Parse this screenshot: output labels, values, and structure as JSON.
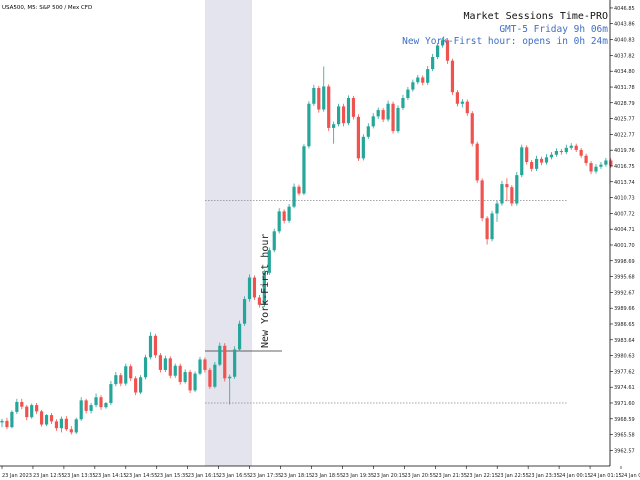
{
  "symbol_label": "USA500, M5:  S&P 500 / Mex CFD",
  "panel": {
    "title": "Market Sessions Time-PRO",
    "gmt_line": "GMT-5 Friday 9h 06m",
    "session_line": "New York-First hour: opens in 0h 24m",
    "session_box_label": "New York-First hour"
  },
  "colors": {
    "bull": "#26a69a",
    "bear": "#ef5350",
    "session_fill": "#e3e4ee",
    "info_blue": "#3e6fc4",
    "dotted": "#888888"
  },
  "chart_data": {
    "type": "candlestick",
    "title": "",
    "xlabel": "",
    "ylabel": "",
    "ylim": [
      3959.6,
      4047.6
    ],
    "y_ticks": [
      "4046.85",
      "4043.86",
      "4040.83",
      "4037.82",
      "4034.80",
      "4031.78",
      "4028.79",
      "4025.77",
      "4022.77",
      "4019.76",
      "4016.75",
      "4013.74",
      "4010.73",
      "4007.72",
      "4004.71",
      "4001.70",
      "3998.69",
      "3995.68",
      "3992.67",
      "3989.66",
      "3986.65",
      "3983.64",
      "3980.63",
      "3977.62",
      "3974.61",
      "3971.60",
      "3968.59",
      "3965.58",
      "3962.57"
    ],
    "x_ticks": [
      "23 Jan 2023",
      "23 Jan 12:55",
      "23 Jan 13:35",
      "23 Jan 14:15",
      "23 Jan 14:55",
      "23 Jan 15:35",
      "23 Jan 16:15",
      "23 Jan 16:55",
      "23 Jan 17:35",
      "23 Jan 18:15",
      "23 Jan 18:55",
      "23 Jan 19:35",
      "23 Jan 20:15",
      "23 Jan 20:55",
      "23 Jan 21:35",
      "23 Jan 22:15",
      "23 Jan 22:55",
      "23 Jan 23:35",
      "24 Jan 00:15",
      "24 Jan 01:15",
      "24 Jan 01:55"
    ],
    "session_levels": {
      "high": 4010.2,
      "low": 3971.6,
      "first_close": 3981.5
    },
    "candles": [
      [
        3967.9,
        3968.6,
        3967.0,
        3968.2
      ],
      [
        3968.2,
        3968.8,
        3966.6,
        3967.0
      ],
      [
        3967.0,
        3970.2,
        3966.8,
        3969.9
      ],
      [
        3969.9,
        3972.4,
        3969.5,
        3971.8
      ],
      [
        3971.8,
        3972.4,
        3970.4,
        3970.9
      ],
      [
        3970.9,
        3971.2,
        3968.3,
        3968.9
      ],
      [
        3968.9,
        3971.5,
        3968.6,
        3971.2
      ],
      [
        3971.2,
        3971.6,
        3969.5,
        3970.0
      ],
      [
        3970.0,
        3970.3,
        3967.1,
        3967.5
      ],
      [
        3967.5,
        3969.5,
        3967.2,
        3969.3
      ],
      [
        3969.3,
        3969.7,
        3967.6,
        3968.1
      ],
      [
        3968.1,
        3968.5,
        3966.3,
        3966.8
      ],
      [
        3966.8,
        3969.0,
        3966.0,
        3968.6
      ],
      [
        3968.6,
        3969.1,
        3966.3,
        3966.6
      ],
      [
        3966.6,
        3967.2,
        3965.6,
        3966.0
      ],
      [
        3966.0,
        3968.8,
        3965.7,
        3968.5
      ],
      [
        3968.5,
        3972.7,
        3968.2,
        3972.1
      ],
      [
        3972.1,
        3972.4,
        3969.6,
        3970.1
      ],
      [
        3970.1,
        3971.6,
        3969.6,
        3971.2
      ],
      [
        3971.2,
        3973.4,
        3970.8,
        3972.7
      ],
      [
        3972.7,
        3973.1,
        3970.3,
        3970.8
      ],
      [
        3970.8,
        3971.8,
        3970.5,
        3971.6
      ],
      [
        3971.6,
        3975.8,
        3971.2,
        3975.2
      ],
      [
        3975.2,
        3977.5,
        3974.8,
        3976.9
      ],
      [
        3976.9,
        3977.3,
        3974.8,
        3975.3
      ],
      [
        3975.3,
        3979.1,
        3974.9,
        3978.6
      ],
      [
        3978.6,
        3979.0,
        3975.8,
        3976.3
      ],
      [
        3976.3,
        3976.7,
        3973.1,
        3973.6
      ],
      [
        3973.6,
        3976.9,
        3973.3,
        3976.5
      ],
      [
        3976.5,
        3980.8,
        3976.1,
        3980.3
      ],
      [
        3980.3,
        3985.1,
        3979.9,
        3984.4
      ],
      [
        3984.4,
        3984.8,
        3980.2,
        3980.7
      ],
      [
        3980.7,
        3981.1,
        3977.4,
        3977.9
      ],
      [
        3977.9,
        3980.6,
        3977.5,
        3980.1
      ],
      [
        3980.1,
        3980.5,
        3976.3,
        3976.8
      ],
      [
        3976.8,
        3979.1,
        3976.4,
        3978.7
      ],
      [
        3978.7,
        3979.1,
        3975.1,
        3975.6
      ],
      [
        3975.6,
        3978.0,
        3975.3,
        3977.5
      ],
      [
        3977.5,
        3977.9,
        3973.5,
        3974.0
      ],
      [
        3974.0,
        3977.6,
        3973.7,
        3977.2
      ],
      [
        3977.2,
        3980.4,
        3976.9,
        3979.9
      ],
      [
        3979.9,
        3980.3,
        3977.4,
        3977.9
      ],
      [
        3977.9,
        3978.3,
        3974.3,
        3974.7
      ],
      [
        3974.7,
        3979.4,
        3974.4,
        3978.9
      ],
      [
        3978.9,
        3983.1,
        3978.6,
        3982.5
      ],
      [
        3982.5,
        3983.0,
        3975.7,
        3976.3
      ],
      [
        3976.3,
        3977.0,
        3971.3,
        3976.6
      ],
      [
        3976.6,
        3982.4,
        3976.2,
        3981.8
      ],
      [
        3981.8,
        3987.3,
        3981.4,
        3986.7
      ],
      [
        3986.7,
        3991.9,
        3986.3,
        3991.4
      ],
      [
        3991.4,
        3996.1,
        3990.9,
        3995.5
      ],
      [
        3995.5,
        3995.9,
        3991.2,
        3991.7
      ],
      [
        3991.7,
        3992.2,
        3989.8,
        3990.3
      ],
      [
        3990.3,
        3997.0,
        3989.9,
        3996.4
      ],
      [
        3996.4,
        4001.2,
        3996.0,
        4000.7
      ],
      [
        4000.7,
        4004.8,
        4000.3,
        4004.3
      ],
      [
        4004.3,
        4008.7,
        4003.9,
        4008.1
      ],
      [
        4008.1,
        4008.5,
        4005.8,
        4006.3
      ],
      [
        4006.3,
        4009.5,
        4005.9,
        4009.0
      ],
      [
        4009.0,
        4013.4,
        4008.7,
        4012.8
      ],
      [
        4012.8,
        4013.2,
        4011.1,
        4011.5
      ],
      [
        4011.5,
        4020.9,
        4011.2,
        4020.5
      ],
      [
        4020.5,
        4029.1,
        4020.1,
        4028.6
      ],
      [
        4028.6,
        4032.2,
        4028.2,
        4031.6
      ],
      [
        4031.6,
        4032.0,
        4026.9,
        4027.5
      ],
      [
        4027.5,
        4035.7,
        4027.1,
        4031.9
      ],
      [
        4031.9,
        4032.3,
        4023.4,
        4024.0
      ],
      [
        4024.0,
        4025.2,
        4021.0,
        4024.7
      ],
      [
        4024.7,
        4028.6,
        4024.3,
        4028.1
      ],
      [
        4028.1,
        4028.6,
        4024.3,
        4024.9
      ],
      [
        4024.9,
        4030.2,
        4024.5,
        4029.7
      ],
      [
        4029.7,
        4030.1,
        4025.6,
        4026.1
      ],
      [
        4026.1,
        4026.6,
        4017.7,
        4018.2
      ],
      [
        4018.2,
        4022.8,
        4017.8,
        4022.3
      ],
      [
        4022.3,
        4024.9,
        4021.9,
        4024.3
      ],
      [
        4024.3,
        4026.8,
        4023.9,
        4026.2
      ],
      [
        4026.2,
        4027.9,
        4025.7,
        4027.4
      ],
      [
        4027.4,
        4027.8,
        4025.1,
        4025.6
      ],
      [
        4025.6,
        4029.2,
        4025.2,
        4028.6
      ],
      [
        4028.6,
        4029.0,
        4022.9,
        4023.4
      ],
      [
        4023.4,
        4028.3,
        4023.0,
        4027.8
      ],
      [
        4027.8,
        4030.3,
        4027.4,
        4029.7
      ],
      [
        4029.7,
        4031.8,
        4029.3,
        4031.3
      ],
      [
        4031.3,
        4033.2,
        4030.9,
        4032.7
      ],
      [
        4032.7,
        4034.1,
        4032.3,
        4033.6
      ],
      [
        4033.6,
        4034.0,
        4032.1,
        4032.6
      ],
      [
        4032.6,
        4035.8,
        4032.2,
        4035.2
      ],
      [
        4035.2,
        4038.1,
        4034.8,
        4037.5
      ],
      [
        4037.5,
        4040.2,
        4037.1,
        4039.7
      ],
      [
        4039.7,
        4041.2,
        4039.3,
        4040.7
      ],
      [
        4040.7,
        4041.1,
        4036.2,
        4036.8
      ],
      [
        4036.8,
        4037.2,
        4030.3,
        4030.8
      ],
      [
        4030.8,
        4031.2,
        4028.1,
        4028.6
      ],
      [
        4028.6,
        4029.5,
        4027.9,
        4029.0
      ],
      [
        4029.0,
        4029.4,
        4026.3,
        4026.8
      ],
      [
        4026.8,
        4027.2,
        4020.5,
        4021.0
      ],
      [
        4021.0,
        4021.4,
        4013.5,
        4014.0
      ],
      [
        4014.0,
        4014.4,
        4006.2,
        4006.8
      ],
      [
        4006.8,
        4007.2,
        4001.8,
        4002.8
      ],
      [
        4002.8,
        4008.2,
        4002.4,
        4007.7
      ],
      [
        4007.7,
        4010.1,
        4006.1,
        4009.6
      ],
      [
        4009.6,
        4013.9,
        4009.2,
        4013.3
      ],
      [
        4013.3,
        4014.4,
        4010.0,
        4012.7
      ],
      [
        4012.7,
        4013.1,
        4009.1,
        4009.6
      ],
      [
        4009.6,
        4015.6,
        4009.2,
        4015.0
      ],
      [
        4015.0,
        4020.8,
        4014.6,
        4020.3
      ],
      [
        4020.3,
        4020.7,
        4017.0,
        4017.5
      ],
      [
        4017.5,
        4017.9,
        4015.7,
        4016.2
      ],
      [
        4016.2,
        4018.7,
        4015.8,
        4018.1
      ],
      [
        4018.1,
        4018.5,
        4016.9,
        4017.4
      ],
      [
        4017.4,
        4019.0,
        4017.0,
        4018.4
      ],
      [
        4018.4,
        4019.4,
        4018.0,
        4018.9
      ],
      [
        4018.9,
        4020.1,
        4018.5,
        4019.6
      ],
      [
        4019.6,
        4020.0,
        4018.9,
        4019.4
      ],
      [
        4019.4,
        4020.8,
        4019.0,
        4020.2
      ],
      [
        4020.2,
        4021.1,
        4019.8,
        4020.6
      ],
      [
        4020.6,
        4021.0,
        4019.4,
        4019.8
      ],
      [
        4019.8,
        4020.2,
        4018.3,
        4018.7
      ],
      [
        4018.7,
        4019.1,
        4016.8,
        4017.3
      ],
      [
        4017.3,
        4017.7,
        4015.2,
        4015.7
      ],
      [
        4015.7,
        4017.1,
        4015.3,
        4016.6
      ],
      [
        4016.6,
        4017.5,
        4016.2,
        4017.0
      ],
      [
        4017.0,
        4018.3,
        4016.6,
        4017.8
      ],
      [
        4017.8,
        4018.2,
        4016.4,
        4016.8
      ]
    ]
  }
}
